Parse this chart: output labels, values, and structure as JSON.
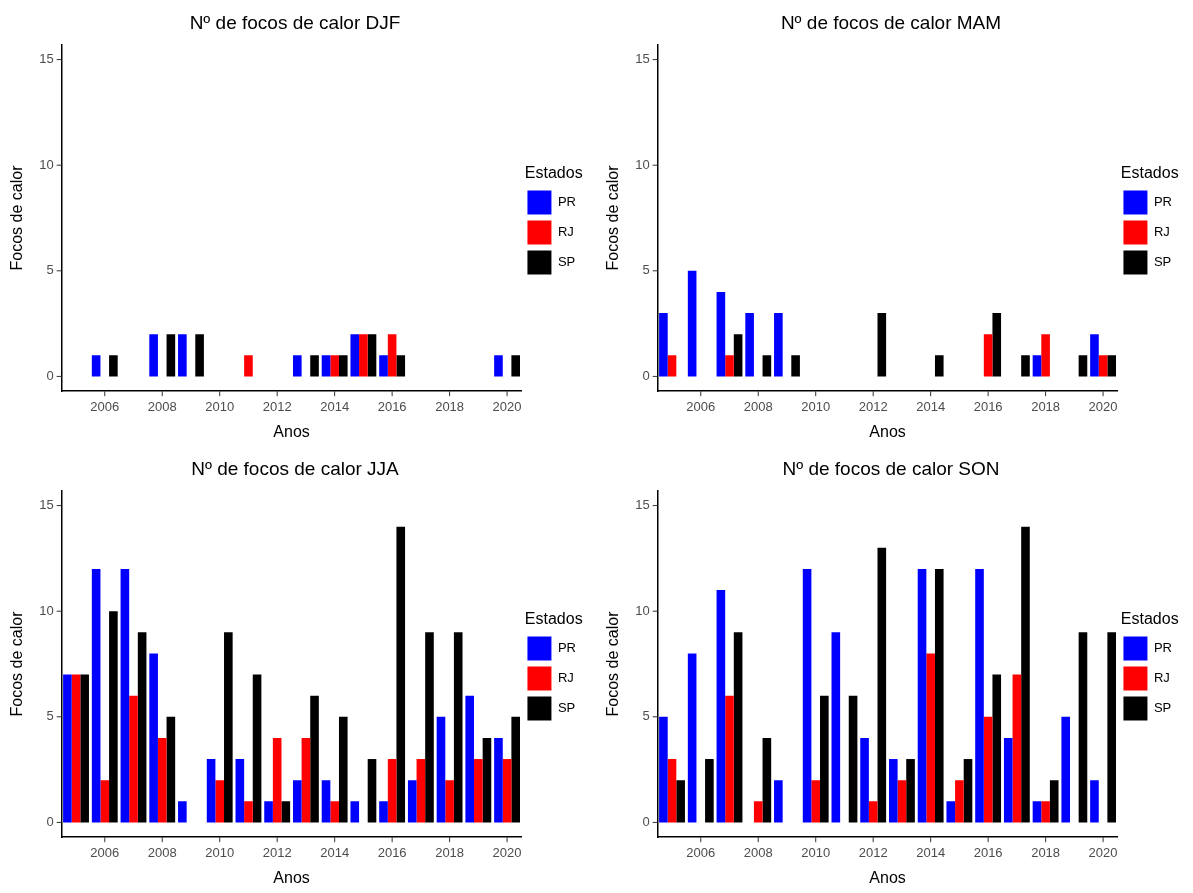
{
  "chart_data": [
    {
      "type": "bar",
      "title": "Nº de focos de calor DJF",
      "xlabel": "Anos",
      "ylabel": "Focos de calor",
      "legend_title": "Estados",
      "legend": "right",
      "grid": false,
      "ylim": [
        -0.7,
        15.7
      ],
      "yticks": [
        0,
        5,
        10,
        15
      ],
      "categories": [
        null,
        "2006",
        null,
        "2008",
        null,
        "2010",
        null,
        "2012",
        null,
        "2014",
        null,
        "2016",
        null,
        "2018",
        null,
        "2020"
      ],
      "series": [
        {
          "name": "PR",
          "color": "#0000ff",
          "values": [
            null,
            1,
            null,
            2,
            2,
            null,
            null,
            null,
            1,
            1,
            2,
            1,
            null,
            null,
            null,
            1
          ]
        },
        {
          "name": "RJ",
          "color": "#ff0000",
          "values": [
            null,
            null,
            null,
            null,
            null,
            null,
            1,
            null,
            null,
            1,
            2,
            2,
            null,
            null,
            null,
            null
          ]
        },
        {
          "name": "SP",
          "color": "#000000",
          "values": [
            null,
            1,
            null,
            2,
            2,
            null,
            null,
            null,
            1,
            1,
            2,
            1,
            null,
            null,
            null,
            1
          ]
        }
      ]
    },
    {
      "type": "bar",
      "title": "Nº de focos de calor MAM",
      "xlabel": "Anos",
      "ylabel": "Focos de calor",
      "legend_title": "Estados",
      "legend": "right",
      "grid": false,
      "ylim": [
        -0.7,
        15.7
      ],
      "yticks": [
        0,
        5,
        10,
        15
      ],
      "categories": [
        null,
        "2006",
        null,
        "2008",
        null,
        "2010",
        null,
        "2012",
        null,
        "2014",
        null,
        "2016",
        null,
        "2018",
        null,
        "2020"
      ],
      "series": [
        {
          "name": "PR",
          "color": "#0000ff",
          "values": [
            3,
            5,
            4,
            3,
            3,
            null,
            null,
            null,
            null,
            null,
            null,
            null,
            null,
            1,
            null,
            2
          ]
        },
        {
          "name": "RJ",
          "color": "#ff0000",
          "values": [
            1,
            null,
            1,
            null,
            null,
            null,
            null,
            null,
            null,
            null,
            null,
            2,
            null,
            2,
            null,
            1
          ]
        },
        {
          "name": "SP",
          "color": "#000000",
          "values": [
            null,
            null,
            2,
            1,
            1,
            null,
            null,
            3,
            null,
            1,
            null,
            3,
            1,
            null,
            1,
            1
          ]
        }
      ]
    },
    {
      "type": "bar",
      "title": "Nº de focos de calor JJA",
      "xlabel": "Anos",
      "ylabel": "Focos de calor",
      "legend_title": "Estados",
      "legend": "right",
      "grid": false,
      "ylim": [
        -0.7,
        15.7
      ],
      "yticks": [
        0,
        5,
        10,
        15
      ],
      "categories": [
        null,
        "2006",
        null,
        "2008",
        null,
        "2010",
        null,
        "2012",
        null,
        "2014",
        null,
        "2016",
        null,
        "2018",
        null,
        "2020"
      ],
      "series": [
        {
          "name": "PR",
          "color": "#0000ff",
          "values": [
            7,
            12,
            12,
            8,
            1,
            3,
            3,
            1,
            2,
            2,
            1,
            1,
            2,
            5,
            6,
            4
          ]
        },
        {
          "name": "RJ",
          "color": "#ff0000",
          "values": [
            7,
            2,
            6,
            4,
            null,
            2,
            1,
            4,
            4,
            1,
            null,
            3,
            3,
            2,
            3,
            3
          ]
        },
        {
          "name": "SP",
          "color": "#000000",
          "values": [
            7,
            10,
            9,
            5,
            null,
            9,
            7,
            1,
            6,
            5,
            3,
            14,
            9,
            9,
            4,
            5
          ]
        }
      ]
    },
    {
      "type": "bar",
      "title": "Nº de focos de calor SON",
      "xlabel": "Anos",
      "ylabel": "Focos de calor",
      "legend_title": "Estados",
      "legend": "right",
      "grid": false,
      "ylim": [
        -0.7,
        15.7
      ],
      "yticks": [
        0,
        5,
        10,
        15
      ],
      "categories": [
        null,
        "2006",
        null,
        "2008",
        null,
        "2010",
        null,
        "2012",
        null,
        "2014",
        null,
        "2016",
        null,
        "2018",
        null,
        "2020"
      ],
      "series": [
        {
          "name": "PR",
          "color": "#0000ff",
          "values": [
            5,
            8,
            11,
            null,
            2,
            12,
            9,
            4,
            3,
            12,
            1,
            12,
            4,
            1,
            5,
            2
          ]
        },
        {
          "name": "RJ",
          "color": "#ff0000",
          "values": [
            3,
            null,
            6,
            1,
            null,
            2,
            null,
            1,
            2,
            8,
            2,
            5,
            7,
            1,
            null,
            null
          ]
        },
        {
          "name": "SP",
          "color": "#000000",
          "values": [
            2,
            3,
            9,
            4,
            null,
            6,
            6,
            13,
            3,
            12,
            3,
            7,
            14,
            2,
            9,
            9
          ]
        }
      ]
    }
  ]
}
